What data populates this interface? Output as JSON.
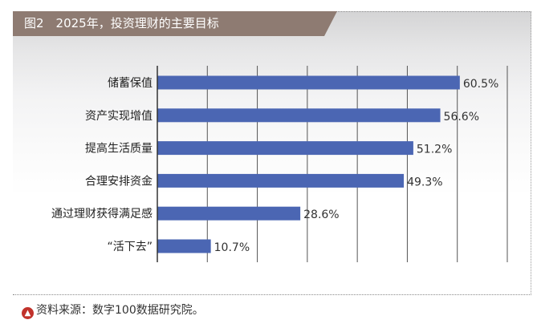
{
  "figure": {
    "title": "图2　2025年，投资理财的主要目标",
    "source": "资料来源：数字100数据研究院。",
    "source_icon": "up-arrow-circle-icon"
  },
  "colors": {
    "bar": "#4b66b3",
    "title_bg": "#8e7b72",
    "grid": "#555555",
    "source_icon": "#c1322b"
  },
  "chart_data": {
    "type": "bar",
    "orientation": "horizontal",
    "categories": [
      "储蓄保值",
      "资产实现增值",
      "提高生活质量",
      "合理安排资金",
      "通过理财获得满足感",
      "“活下去”"
    ],
    "values": [
      60.5,
      56.6,
      51.2,
      49.3,
      28.6,
      10.7
    ],
    "value_labels": [
      "60.5%",
      "56.6%",
      "51.2%",
      "49.3%",
      "28.6%",
      "10.7%"
    ],
    "xlim": [
      0,
      70
    ],
    "grid": true,
    "title": "",
    "xlabel": "",
    "ylabel": ""
  }
}
